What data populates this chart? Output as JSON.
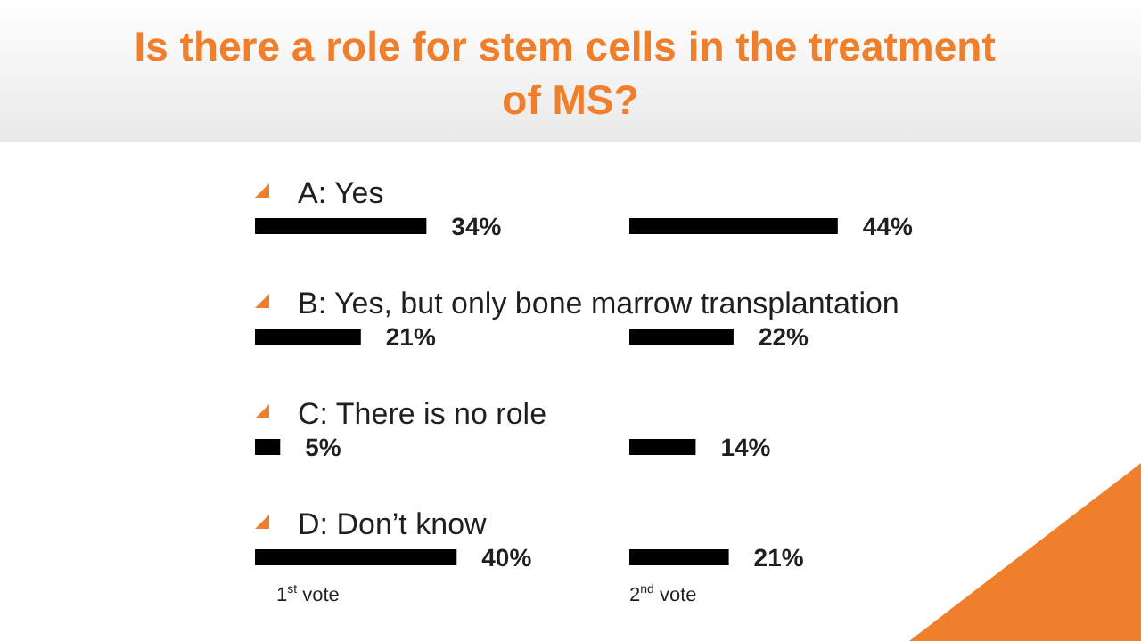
{
  "chart_data": [
    {
      "type": "bar",
      "orientation": "horizontal",
      "title": "Is there a role for stem cells in the treatment of MS?",
      "categories": [
        "A: Yes",
        "B: Yes, but only bone marrow transplantation",
        "C: There is no role",
        "D: Don’t know"
      ],
      "values": [
        34,
        21,
        5,
        40
      ],
      "color": "#000000",
      "value_labels": [
        "34%",
        "21%",
        "5%",
        "40%"
      ],
      "xlabel": "1$^{st}$ vote"
    },
    {
      "type": "bar",
      "orientation": "horizontal",
      "categories": [
        null,
        null,
        null,
        null
      ],
      "values": [
        44,
        22,
        14,
        21
      ],
      "color": "#000000",
      "value_labels": [
        "44%",
        "22%",
        "14%",
        "21%"
      ],
      "xlabel": "2$^{nd}$ vote"
    }
  ]
}
